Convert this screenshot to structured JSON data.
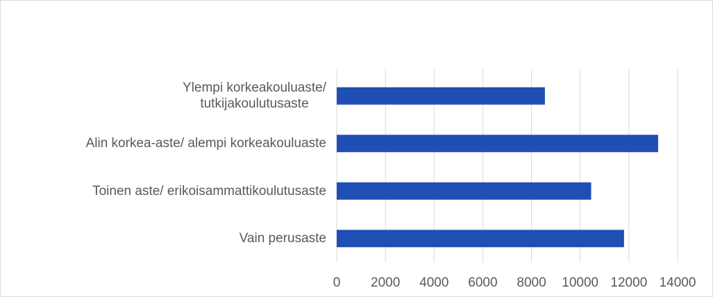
{
  "chart_data": {
    "type": "bar",
    "orientation": "horizontal",
    "categories": [
      "Ylempi korkeakouluaste/\ntutkijakoulutusaste",
      "Alin korkea-aste/ alempi korkeakouluaste",
      "Toinen aste/ erikoisammattikoulutusaste",
      "Vain perusaste"
    ],
    "values": [
      8550,
      13200,
      10450,
      11800
    ],
    "color": "#1f4eb4",
    "xlim": [
      0,
      14000
    ],
    "xticks": [
      0,
      2000,
      4000,
      6000,
      8000,
      10000,
      12000,
      14000
    ],
    "grid": true
  }
}
